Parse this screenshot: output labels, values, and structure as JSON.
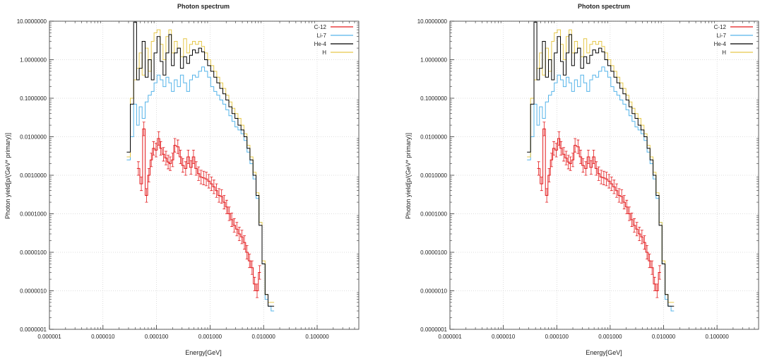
{
  "panels": [
    {
      "title": "Photon spectrum",
      "xlabel": "Energy[GeV]",
      "ylabel": "Photon yield[p/(GeV* primary)]"
    },
    {
      "title": "Photon spectrum",
      "xlabel": "Energy[GeV]",
      "ylabel": "Photon yield[p/(GeV* primary)]"
    }
  ],
  "chart_data": [
    {
      "type": "line",
      "title": "Photon spectrum",
      "xlabel": "Energy[GeV]",
      "ylabel": "Photon yield[p/(GeV* primary)]",
      "xscale": "log",
      "yscale": "log",
      "xlim": [
        1e-06,
        0.6
      ],
      "ylim": [
        1e-07,
        10
      ],
      "xticks": [
        "0.000001",
        "0.000010",
        "0.000100",
        "0.001000",
        "0.010000",
        "0.100000"
      ],
      "yticks": [
        "0.0000001",
        "0.0000010",
        "0.0000100",
        "0.0001000",
        "0.0010000",
        "0.0100000",
        "0.1000000",
        "1.0000000",
        "10.0000000"
      ],
      "legend": "top-right",
      "grid": true,
      "colors": {
        "C-12": "#e31a1c",
        "Li-7": "#56b4e9",
        "He-4": "#000000",
        "H": "#e6c84a"
      },
      "series": [
        {
          "name": "C-12",
          "x": [
            4.58e-05,
            5.2e-05,
            5.8e-05,
            6.5e-05,
            7.2e-05,
            8e-05,
            8.8e-05,
            9.8e-05,
            0.00011,
            0.00012,
            0.000135,
            0.00015,
            0.000165,
            0.00018,
            0.0002,
            0.00022,
            0.00025,
            0.00028,
            0.00031,
            0.00035,
            0.00039,
            0.00044,
            0.00049,
            0.00055,
            0.00061,
            0.00068,
            0.00076,
            0.00085,
            0.00095,
            0.00106,
            0.00118,
            0.00132,
            0.00147,
            0.00164,
            0.00183,
            0.00204,
            0.00228,
            0.00254,
            0.00283,
            0.00316,
            0.00352,
            0.00393,
            0.00438,
            0.00489,
            0.00545,
            0.00608,
            0.00678,
            0.00756,
            0.00844
          ],
          "y": [
            0.0015,
            0.0006,
            0.016,
            0.0003,
            0.001,
            0.0025,
            0.005,
            0.0045,
            0.009,
            0.005,
            0.0035,
            0.0028,
            0.0022,
            0.002,
            0.0025,
            0.006,
            0.0055,
            0.003,
            0.0018,
            0.0015,
            0.003,
            0.0016,
            0.003,
            0.0015,
            0.0011,
            0.0009,
            0.00085,
            0.0008,
            0.0007,
            0.0006,
            0.0005,
            0.0004,
            0.0003,
            0.00028,
            0.0002,
            0.00015,
            0.0001,
            7e-05,
            5e-05,
            4e-05,
            3e-05,
            2.5e-05,
            1.8e-05,
            1e-05,
            6e-06,
            4e-06,
            1.5e-06,
            1e-06,
            3e-06
          ]
        },
        {
          "name": "Li-7",
          "x": [
            3e-05,
            3.5e-05,
            4e-05,
            4.5e-05,
            5e-05,
            5.8e-05,
            6.5e-05,
            7.5e-05,
            8.5e-05,
            9.5e-05,
            0.00011,
            0.000125,
            0.00014,
            0.00016,
            0.00018,
            0.0002,
            0.00023,
            0.00026,
            0.0003,
            0.00034,
            0.00039,
            0.00044,
            0.0005,
            0.00057,
            0.00065,
            0.00074,
            0.00084,
            0.00096,
            0.0011,
            0.00125,
            0.00142,
            0.00162,
            0.00185,
            0.0021,
            0.0024,
            0.00273,
            0.00311,
            0.00354,
            0.00403,
            0.00459,
            0.00522,
            0.00594,
            0.00677,
            0.0077,
            0.00877,
            0.00998,
            0.01136,
            0.01293,
            0.01472
          ],
          "y": [
            0.0025,
            0.01,
            0.07,
            0.02,
            0.06,
            0.03,
            0.08,
            0.12,
            0.15,
            0.25,
            0.4,
            0.3,
            0.2,
            0.35,
            0.25,
            0.15,
            0.3,
            0.2,
            0.4,
            0.25,
            0.15,
            0.3,
            0.4,
            0.35,
            0.5,
            0.65,
            0.5,
            0.35,
            0.2,
            0.15,
            0.12,
            0.09,
            0.07,
            0.05,
            0.035,
            0.025,
            0.018,
            0.015,
            0.012,
            0.008,
            0.004,
            0.002,
            0.0008,
            0.00025,
            6e-05,
            5e-06,
            6e-07,
            4e-07,
            3e-07
          ]
        },
        {
          "name": "He-4",
          "x": [
            3e-05,
            3.5e-05,
            4e-05,
            4.5e-05,
            5e-05,
            5.8e-05,
            6.5e-05,
            7.5e-05,
            8.5e-05,
            9.5e-05,
            0.00011,
            0.000125,
            0.00014,
            0.00016,
            0.00018,
            0.0002,
            0.00023,
            0.00026,
            0.0003,
            0.00034,
            0.00039,
            0.00044,
            0.0005,
            0.00057,
            0.00065,
            0.00074,
            0.00084,
            0.00096,
            0.0011,
            0.00125,
            0.00142,
            0.00162,
            0.00185,
            0.0021,
            0.0024,
            0.00273,
            0.00311,
            0.00354,
            0.00403,
            0.00459,
            0.00522,
            0.00594,
            0.00677,
            0.0077,
            0.00877,
            0.00998,
            0.01136,
            0.01293,
            0.01472
          ],
          "y": [
            0.004,
            0.07,
            9.5,
            0.3,
            0.6,
            3.0,
            0.35,
            1.0,
            0.3,
            1.5,
            4.0,
            0.9,
            0.4,
            1.5,
            4.5,
            0.7,
            1.5,
            2.0,
            0.6,
            1.2,
            0.8,
            1.3,
            1.8,
            1.5,
            2.0,
            1.6,
            1.0,
            0.7,
            0.5,
            0.35,
            0.25,
            0.18,
            0.13,
            0.09,
            0.06,
            0.04,
            0.03,
            0.02,
            0.015,
            0.01,
            0.005,
            0.0025,
            0.001,
            0.0003,
            5e-05,
            5e-06,
            8e-07,
            4e-07,
            4e-07
          ]
        },
        {
          "name": "H",
          "x": [
            3e-05,
            3.5e-05,
            4e-05,
            4.5e-05,
            5e-05,
            5.8e-05,
            6.5e-05,
            7.5e-05,
            8.5e-05,
            9.5e-05,
            0.00011,
            0.000125,
            0.00014,
            0.00016,
            0.00018,
            0.0002,
            0.00023,
            0.00026,
            0.0003,
            0.00034,
            0.00039,
            0.00044,
            0.0005,
            0.00057,
            0.00065,
            0.00074,
            0.00084,
            0.00096,
            0.0011,
            0.00125,
            0.00142,
            0.00162,
            0.00185,
            0.0021,
            0.0024,
            0.00273,
            0.00311,
            0.00354,
            0.00403,
            0.00459,
            0.00522,
            0.00594,
            0.00677,
            0.0077,
            0.00877,
            0.00998,
            0.01136,
            0.01293,
            0.01472
          ],
          "y": [
            0.003,
            0.1,
            0.3,
            0.6,
            1.5,
            0.4,
            2.0,
            0.5,
            3.0,
            5.0,
            6.0,
            2.5,
            1.0,
            4.0,
            6.0,
            1.5,
            3.0,
            2.0,
            1.2,
            3.5,
            1.5,
            2.5,
            3.0,
            2.5,
            3.0,
            2.2,
            1.5,
            1.0,
            0.7,
            0.5,
            0.35,
            0.25,
            0.18,
            0.12,
            0.08,
            0.055,
            0.04,
            0.03,
            0.02,
            0.012,
            0.006,
            0.003,
            0.0012,
            0.00035,
            6e-05,
            6e-06,
            8e-07,
            5e-07,
            5e-07
          ]
        }
      ]
    },
    {
      "type": "line",
      "title": "Photon spectrum",
      "xlabel": "Energy[GeV]",
      "ylabel": "Photon yield[p/(GeV* primary)]",
      "xscale": "log",
      "yscale": "log",
      "xlim": [
        1e-06,
        0.6
      ],
      "ylim": [
        1e-07,
        10
      ],
      "xticks": [
        "0.000001",
        "0.000010",
        "0.000100",
        "0.001000",
        "0.010000",
        "0.100000"
      ],
      "yticks": [
        "0.0000001",
        "0.0000010",
        "0.0000100",
        "0.0001000",
        "0.0010000",
        "0.0100000",
        "0.1000000",
        "1.0000000",
        "10.0000000"
      ],
      "legend": "top-right",
      "grid": true,
      "colors": {
        "C-12": "#e31a1c",
        "Li-7": "#56b4e9",
        "He-4": "#000000",
        "H": "#e6c84a"
      },
      "series": [
        {
          "name": "C-12",
          "x": [
            4.58e-05,
            5.2e-05,
            5.8e-05,
            6.5e-05,
            7.2e-05,
            8e-05,
            8.8e-05,
            9.8e-05,
            0.00011,
            0.00012,
            0.000135,
            0.00015,
            0.000165,
            0.00018,
            0.0002,
            0.00022,
            0.00025,
            0.00028,
            0.00031,
            0.00035,
            0.00039,
            0.00044,
            0.00049,
            0.00055,
            0.00061,
            0.00068,
            0.00076,
            0.00085,
            0.00095,
            0.00106,
            0.00118,
            0.00132,
            0.00147,
            0.00164,
            0.00183,
            0.00204,
            0.00228,
            0.00254,
            0.00283,
            0.00316,
            0.00352,
            0.00393,
            0.00438,
            0.00489,
            0.00545,
            0.00608,
            0.00678,
            0.00756,
            0.00844
          ],
          "y": [
            0.0015,
            0.0006,
            0.016,
            0.0003,
            0.001,
            0.0025,
            0.005,
            0.0045,
            0.009,
            0.005,
            0.0035,
            0.0028,
            0.0022,
            0.002,
            0.0025,
            0.006,
            0.0055,
            0.003,
            0.0018,
            0.0015,
            0.003,
            0.0016,
            0.003,
            0.0015,
            0.0011,
            0.0009,
            0.00085,
            0.0008,
            0.0007,
            0.0006,
            0.0005,
            0.0004,
            0.0003,
            0.00028,
            0.0002,
            0.00015,
            0.0001,
            7e-05,
            5e-05,
            4e-05,
            3e-05,
            2.5e-05,
            1.8e-05,
            1e-05,
            6e-06,
            4e-06,
            1.5e-06,
            1e-06,
            3e-06
          ]
        },
        {
          "name": "Li-7",
          "x": [
            3e-05,
            3.5e-05,
            4e-05,
            4.5e-05,
            5e-05,
            5.8e-05,
            6.5e-05,
            7.5e-05,
            8.5e-05,
            9.5e-05,
            0.00011,
            0.000125,
            0.00014,
            0.00016,
            0.00018,
            0.0002,
            0.00023,
            0.00026,
            0.0003,
            0.00034,
            0.00039,
            0.00044,
            0.0005,
            0.00057,
            0.00065,
            0.00074,
            0.00084,
            0.00096,
            0.0011,
            0.00125,
            0.00142,
            0.00162,
            0.00185,
            0.0021,
            0.0024,
            0.00273,
            0.00311,
            0.00354,
            0.00403,
            0.00459,
            0.00522,
            0.00594,
            0.00677,
            0.0077,
            0.00877,
            0.00998,
            0.01136,
            0.01293,
            0.01472
          ],
          "y": [
            0.0025,
            0.01,
            0.07,
            0.02,
            0.06,
            0.03,
            0.08,
            0.12,
            0.15,
            0.25,
            0.4,
            0.3,
            0.2,
            0.35,
            0.25,
            0.15,
            0.3,
            0.2,
            0.4,
            0.25,
            0.15,
            0.3,
            0.4,
            0.35,
            0.5,
            0.65,
            0.5,
            0.35,
            0.2,
            0.15,
            0.12,
            0.09,
            0.07,
            0.05,
            0.035,
            0.025,
            0.018,
            0.015,
            0.012,
            0.008,
            0.004,
            0.002,
            0.0008,
            0.00025,
            6e-05,
            5e-06,
            6e-07,
            4e-07,
            3e-07
          ]
        },
        {
          "name": "He-4",
          "x": [
            3e-05,
            3.5e-05,
            4e-05,
            4.5e-05,
            5e-05,
            5.8e-05,
            6.5e-05,
            7.5e-05,
            8.5e-05,
            9.5e-05,
            0.00011,
            0.000125,
            0.00014,
            0.00016,
            0.00018,
            0.0002,
            0.00023,
            0.00026,
            0.0003,
            0.00034,
            0.00039,
            0.00044,
            0.0005,
            0.00057,
            0.00065,
            0.00074,
            0.00084,
            0.00096,
            0.0011,
            0.00125,
            0.00142,
            0.00162,
            0.00185,
            0.0021,
            0.0024,
            0.00273,
            0.00311,
            0.00354,
            0.00403,
            0.00459,
            0.00522,
            0.00594,
            0.00677,
            0.0077,
            0.00877,
            0.00998,
            0.01136,
            0.01293,
            0.01472
          ],
          "y": [
            0.004,
            0.07,
            9.5,
            0.3,
            0.6,
            3.0,
            0.35,
            1.0,
            0.3,
            1.5,
            4.0,
            0.9,
            0.4,
            1.5,
            4.5,
            0.7,
            1.5,
            2.0,
            0.6,
            1.2,
            0.8,
            1.3,
            1.8,
            1.5,
            2.0,
            1.6,
            1.0,
            0.7,
            0.5,
            0.35,
            0.25,
            0.18,
            0.13,
            0.09,
            0.06,
            0.04,
            0.03,
            0.02,
            0.015,
            0.01,
            0.005,
            0.0025,
            0.001,
            0.0003,
            5e-05,
            5e-06,
            8e-07,
            4e-07,
            4e-07
          ]
        },
        {
          "name": "H",
          "x": [
            3e-05,
            3.5e-05,
            4e-05,
            4.5e-05,
            5e-05,
            5.8e-05,
            6.5e-05,
            7.5e-05,
            8.5e-05,
            9.5e-05,
            0.00011,
            0.000125,
            0.00014,
            0.00016,
            0.00018,
            0.0002,
            0.00023,
            0.00026,
            0.0003,
            0.00034,
            0.00039,
            0.00044,
            0.0005,
            0.00057,
            0.00065,
            0.00074,
            0.00084,
            0.00096,
            0.0011,
            0.00125,
            0.00142,
            0.00162,
            0.00185,
            0.0021,
            0.0024,
            0.00273,
            0.00311,
            0.00354,
            0.00403,
            0.00459,
            0.00522,
            0.00594,
            0.00677,
            0.0077,
            0.00877,
            0.00998,
            0.01136,
            0.01293,
            0.01472
          ],
          "y": [
            0.003,
            0.1,
            0.3,
            0.6,
            1.5,
            0.4,
            2.0,
            0.5,
            3.0,
            5.0,
            6.0,
            2.5,
            1.0,
            4.0,
            6.0,
            1.5,
            3.0,
            2.0,
            1.2,
            3.5,
            1.5,
            2.5,
            3.0,
            2.5,
            3.0,
            2.2,
            1.5,
            1.0,
            0.7,
            0.5,
            0.35,
            0.25,
            0.18,
            0.12,
            0.08,
            0.055,
            0.04,
            0.03,
            0.02,
            0.012,
            0.006,
            0.003,
            0.0012,
            0.00035,
            6e-05,
            6e-06,
            8e-07,
            5e-07,
            5e-07
          ]
        }
      ]
    }
  ]
}
